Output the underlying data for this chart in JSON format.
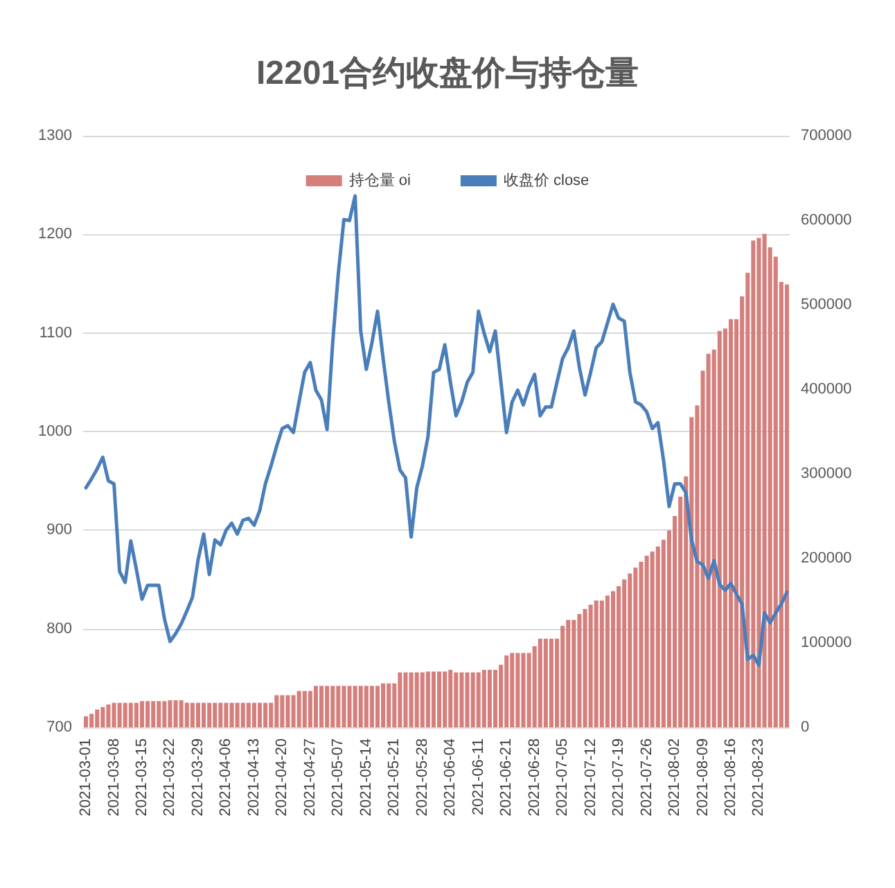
{
  "chart_data": {
    "type": "line",
    "title": "I2201合约收盘价与持仓量",
    "categories": [
      "2021-03-01",
      null,
      null,
      null,
      null,
      "2021-03-08",
      null,
      null,
      null,
      null,
      "2021-03-15",
      null,
      null,
      null,
      null,
      "2021-03-22",
      null,
      null,
      null,
      null,
      "2021-03-29",
      null,
      null,
      null,
      null,
      "2021-04-06",
      null,
      null,
      null,
      null,
      "2021-04-13",
      null,
      null,
      null,
      null,
      "2021-04-20",
      null,
      null,
      null,
      null,
      "2021-04-27",
      null,
      null,
      null,
      null,
      "2021-05-07",
      null,
      null,
      null,
      null,
      "2021-05-14",
      null,
      null,
      null,
      null,
      "2021-05-21",
      null,
      null,
      null,
      null,
      "2021-05-28",
      null,
      null,
      null,
      null,
      "2021-06-04",
      null,
      null,
      null,
      null,
      "2021-06-11",
      null,
      null,
      null,
      null,
      "2021-06-21",
      null,
      null,
      null,
      null,
      "2021-06-28",
      null,
      null,
      null,
      null,
      "2021-07-05",
      null,
      null,
      null,
      null,
      "2021-07-12",
      null,
      null,
      null,
      null,
      "2021-07-19",
      null,
      null,
      null,
      null,
      "2021-07-26",
      null,
      null,
      null,
      null,
      "2021-08-02",
      null,
      null,
      null,
      null,
      "2021-08-09",
      null,
      null,
      null,
      null,
      "2021-08-16",
      null,
      null,
      null,
      null,
      "2021-08-23",
      null,
      null,
      null,
      null,
      null
    ],
    "series": [
      {
        "name": "持仓量 oi",
        "type": "bar",
        "axis": "y2",
        "color": "#d47f7c",
        "values": [
          13000,
          16000,
          21000,
          24000,
          27000,
          29000,
          29000,
          29000,
          29000,
          29000,
          31000,
          31000,
          31000,
          31000,
          31000,
          32000,
          32000,
          32000,
          29000,
          29000,
          29000,
          29000,
          29000,
          29000,
          29000,
          29000,
          29000,
          29000,
          29000,
          29000,
          29000,
          29000,
          29000,
          29000,
          38000,
          38000,
          38000,
          38000,
          43000,
          43000,
          43000,
          49000,
          49000,
          49000,
          49000,
          49000,
          49000,
          49000,
          49000,
          49000,
          49000,
          49000,
          49000,
          52000,
          52000,
          52000,
          65000,
          65000,
          65000,
          65000,
          65000,
          66000,
          66000,
          66000,
          66000,
          68000,
          65000,
          65000,
          65000,
          65000,
          65000,
          68000,
          68000,
          68000,
          74000,
          85000,
          88000,
          88000,
          88000,
          88000,
          96000,
          105000,
          105000,
          105000,
          105000,
          120000,
          127000,
          127000,
          134000,
          140000,
          145000,
          150000,
          150000,
          156000,
          161000,
          167000,
          175000,
          182000,
          189000,
          196000,
          203000,
          208000,
          214000,
          222000,
          233000,
          250000,
          273000,
          297000,
          367000,
          381000,
          422000,
          442000,
          447000,
          469000,
          472000,
          483000,
          483000,
          510000,
          538000,
          576000,
          579000,
          584000,
          568000,
          557000,
          527000,
          524000
        ]
      },
      {
        "name": "收盘价 close",
        "axis": "y",
        "color": "#4a7ebb",
        "values": [
          943,
          952,
          962,
          974,
          950,
          947,
          858,
          847,
          889,
          860,
          830,
          844,
          844,
          844,
          810,
          787,
          795,
          805,
          818,
          832,
          870,
          896,
          855,
          890,
          885,
          900,
          907,
          896,
          910,
          912,
          905,
          920,
          947,
          965,
          985,
          1003,
          1006,
          999,
          1030,
          1060,
          1070,
          1042,
          1032,
          1002,
          1090,
          1160,
          1215,
          1214,
          1239,
          1102,
          1063,
          1090,
          1122,
          1074,
          1030,
          990,
          961,
          953,
          893,
          943,
          965,
          995,
          1060,
          1063,
          1088,
          1050,
          1016,
          1030,
          1050,
          1060,
          1122,
          1100,
          1081,
          1102,
          1050,
          999,
          1030,
          1042,
          1027,
          1045,
          1058,
          1016,
          1025,
          1025,
          1050,
          1074,
          1085,
          1102,
          1065,
          1037,
          1060,
          1085,
          1091,
          1110,
          1129,
          1115,
          1112,
          1060,
          1030,
          1027,
          1020,
          1003,
          1009,
          971,
          924,
          947,
          947,
          938,
          890,
          868,
          865,
          851,
          869,
          845,
          839,
          846,
          835,
          825,
          769,
          773,
          763,
          816,
          806,
          816,
          825,
          837
        ]
      }
    ],
    "ylim": [
      700,
      1300
    ],
    "yticks": [
      700,
      800,
      900,
      1000,
      1100,
      1200,
      1300
    ],
    "y2lim": [
      0,
      700000
    ],
    "y2ticks": [
      0,
      100000,
      200000,
      300000,
      400000,
      500000,
      600000,
      700000
    ],
    "grid": "y",
    "legend": "top",
    "marker": "none",
    "line_style": "solid"
  }
}
